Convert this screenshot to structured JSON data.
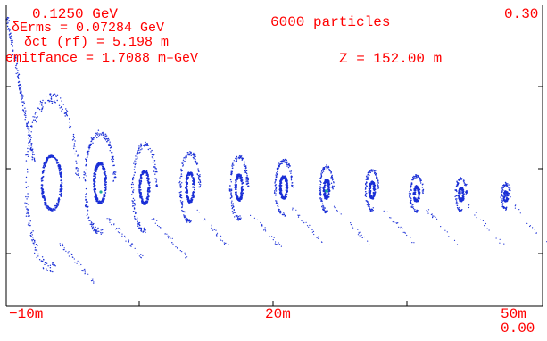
{
  "readouts": {
    "energy": "0.1250  GeV",
    "derms": "δErms = 0.07284  GeV",
    "dct": "δct (rf) =   5.198 m",
    "emittance": "emitfance =   1.7088 m–GeV",
    "particles": "6000  particles",
    "z": "Z =   152.00  m",
    "y_max": "0.30",
    "y_min": "0.00",
    "x_left": "−10m",
    "x_mid": "20m",
    "x_right": "50m"
  },
  "colors": {
    "text": "#ff0000",
    "particles": "#1a2fd6",
    "highlight": "#19a89a",
    "frame": "#000000"
  },
  "chart_data": {
    "type": "scatter",
    "x_range_m": [
      -10,
      50
    ],
    "y_range": [
      0.0,
      0.3
    ],
    "bunch_count": 11
  }
}
